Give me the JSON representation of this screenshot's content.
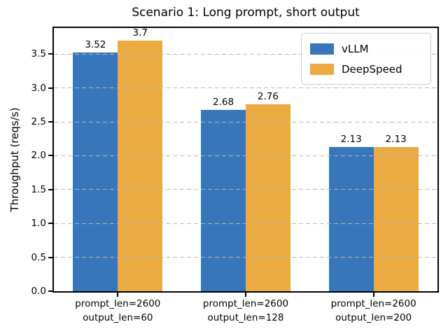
{
  "chart_data": {
    "type": "bar",
    "title": "Scenario 1: Long prompt, short output",
    "ylabel": "Throughput (reqs/s)",
    "xlabel": "",
    "categories": [
      [
        "prompt_len=2600",
        "output_len=60"
      ],
      [
        "prompt_len=2600",
        "output_len=128"
      ],
      [
        "prompt_len=2600",
        "output_len=200"
      ]
    ],
    "series": [
      {
        "name": "vLLM",
        "color": "#3776BA",
        "values": [
          3.52,
          2.68,
          2.13
        ],
        "labels": [
          "3.52",
          "2.68",
          "2.13"
        ]
      },
      {
        "name": "DeepSpeed",
        "color": "#ECAA43",
        "values": [
          3.7,
          2.76,
          2.13
        ],
        "labels": [
          "3.7",
          "2.76",
          "2.13"
        ]
      }
    ],
    "ylim": [
      0,
      3.885
    ],
    "yticks": [
      0.0,
      0.5,
      1.0,
      1.5,
      2.0,
      2.5,
      3.0,
      3.5
    ],
    "ytick_labels": [
      "0.0",
      "0.5",
      "1.0",
      "1.5",
      "2.0",
      "2.5",
      "3.0",
      "3.5"
    ],
    "bar_width_fraction": 0.35,
    "grid": "horizontal dashed, drawn above bars",
    "grid_color": "#b8b8b8",
    "legend_position": "upper right",
    "spine_color": "#000000"
  }
}
